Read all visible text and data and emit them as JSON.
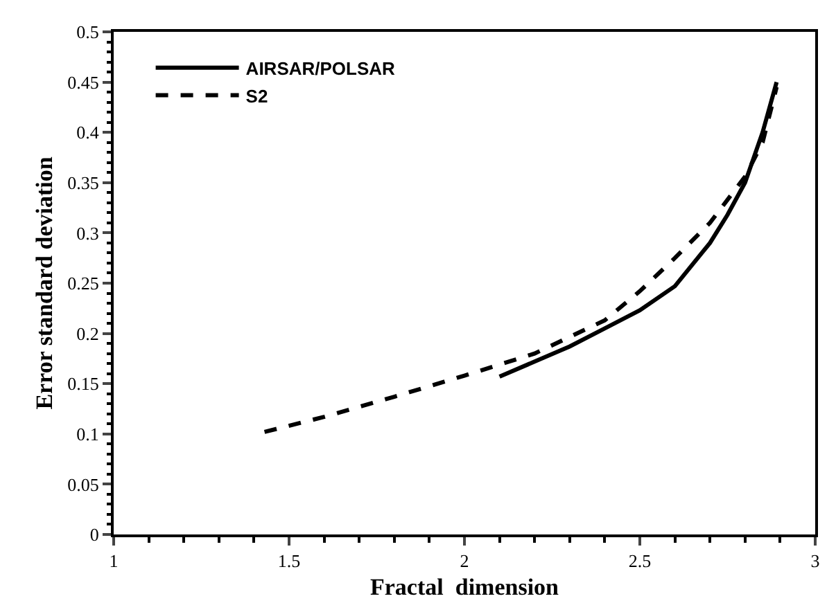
{
  "chart_data": {
    "type": "line",
    "xlabel": "Fractal  dimension",
    "ylabel": "Error standard deviation",
    "xlim": [
      1,
      3
    ],
    "xticks": [
      1,
      1.5,
      2,
      2.5,
      3
    ],
    "ylim": [
      0,
      0.5
    ],
    "yticks": [
      0,
      0.05,
      0.1,
      0.15,
      0.2,
      0.25,
      0.3,
      0.35,
      0.4,
      0.45,
      0.5
    ],
    "legend": "top left",
    "marker": "none",
    "series": [
      {
        "name": "AIRSAR/POLSAR",
        "color": "#000000",
        "line_style": "solid",
        "x": [
          2.1,
          2.2,
          2.3,
          2.4,
          2.5,
          2.6,
          2.7,
          2.75,
          2.8,
          2.85,
          2.89
        ],
        "values": [
          0.157,
          0.172,
          0.187,
          0.205,
          0.223,
          0.247,
          0.29,
          0.318,
          0.35,
          0.4,
          0.45
        ]
      },
      {
        "name": "S2",
        "color": "#000000",
        "line_style": "dashed",
        "x": [
          1.43,
          1.6,
          1.8,
          2.0,
          2.2,
          2.4,
          2.5,
          2.6,
          2.7,
          2.8,
          2.85,
          2.89
        ],
        "values": [
          0.102,
          0.117,
          0.137,
          0.158,
          0.18,
          0.213,
          0.242,
          0.275,
          0.31,
          0.356,
          0.39,
          0.445
        ]
      }
    ]
  }
}
